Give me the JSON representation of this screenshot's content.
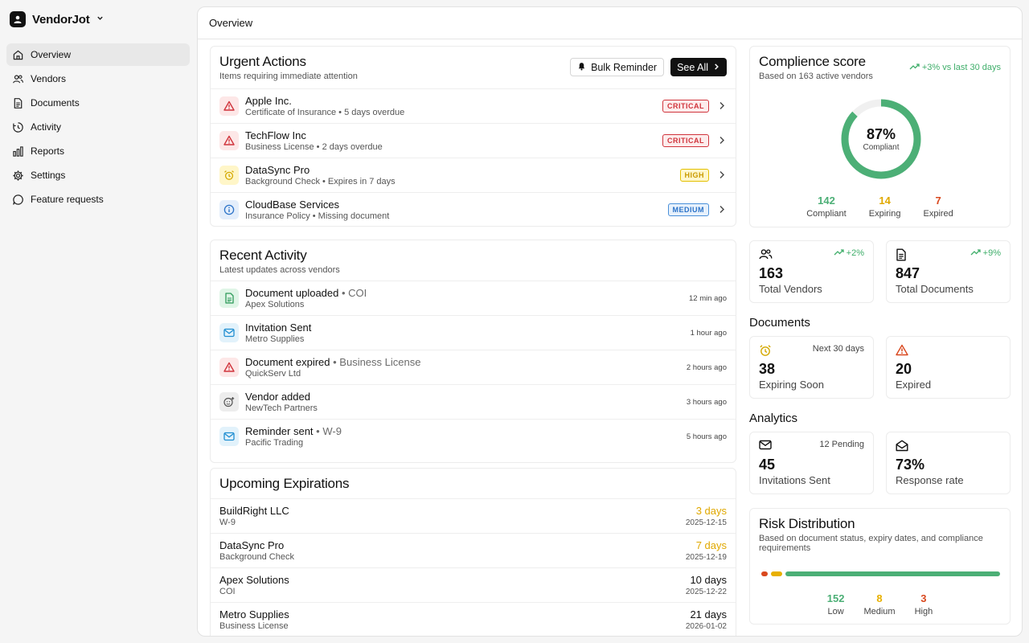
{
  "app": {
    "name": "VendorJot"
  },
  "sidebar": {
    "items": [
      {
        "label": "Overview",
        "icon": "home-icon",
        "active": true
      },
      {
        "label": "Vendors",
        "icon": "users-icon"
      },
      {
        "label": "Documents",
        "icon": "document-icon"
      },
      {
        "label": "Activity",
        "icon": "activity-icon"
      },
      {
        "label": "Reports",
        "icon": "bar-chart-icon"
      },
      {
        "label": "Settings",
        "icon": "gear-icon"
      },
      {
        "label": "Feature requests",
        "icon": "message-icon"
      }
    ]
  },
  "header": {
    "title": "Overview"
  },
  "urgent": {
    "title": "Urgent Actions",
    "subtitle": "Items requiring immediate attention",
    "bulk_label": "Bulk Reminder",
    "see_all_label": "See All",
    "items": [
      {
        "name": "Apple Inc.",
        "detail": "Certificate of Insurance • 5 days overdue",
        "badge": "CRITICAL",
        "level": "critical",
        "icon": "alert-triangle-icon"
      },
      {
        "name": "TechFlow Inc",
        "detail": "Business License • 2 days overdue",
        "badge": "CRITICAL",
        "level": "critical",
        "icon": "alert-triangle-icon"
      },
      {
        "name": "DataSync Pro",
        "detail": "Background Check • Expires in 7 days",
        "badge": "HIGH",
        "level": "high",
        "icon": "alarm-clock-icon"
      },
      {
        "name": "CloudBase Services",
        "detail": "Insurance Policy • Missing document",
        "badge": "MEDIUM",
        "level": "medium",
        "icon": "info-icon"
      }
    ]
  },
  "activity": {
    "title": "Recent Activity",
    "subtitle": "Latest updates across vendors",
    "items": [
      {
        "title": "Document uploaded",
        "extra": "• COI",
        "vendor": "Apex Solutions",
        "time": "12 min ago",
        "icon": "file-icon"
      },
      {
        "title": "Invitation Sent",
        "extra": "",
        "vendor": "Metro Supplies",
        "time": "1 hour ago",
        "icon": "mail-icon"
      },
      {
        "title": "Document expired",
        "extra": "• Business License",
        "vendor": "QuickServ Ltd",
        "time": "2 hours ago",
        "icon": "alert-triangle-icon"
      },
      {
        "title": "Vendor added",
        "extra": "",
        "vendor": "NewTech Partners",
        "time": "3 hours ago",
        "icon": "user-plus-icon"
      },
      {
        "title": "Reminder sent",
        "extra": "• W-9",
        "vendor": "Pacific Trading",
        "time": "5 hours ago",
        "icon": "mail-icon"
      }
    ]
  },
  "expirations": {
    "title": "Upcoming Expirations",
    "items": [
      {
        "vendor": "BuildRight LLC",
        "doc": "W-9",
        "days": "3 days",
        "date": "2025-12-15",
        "color": "#e0a800"
      },
      {
        "vendor": "DataSync Pro",
        "doc": "Background Check",
        "days": "7 days",
        "date": "2025-12-19",
        "color": "#e0a800"
      },
      {
        "vendor": "Apex Solutions",
        "doc": "COI",
        "days": "10 days",
        "date": "2025-12-22",
        "color": "#111111"
      },
      {
        "vendor": "Metro Supplies",
        "doc": "Business License",
        "days": "21 days",
        "date": "2026-01-02",
        "color": "#111111"
      }
    ]
  },
  "compliance": {
    "title": "Complience score",
    "subtitle": "Based on 163 active vendors",
    "trend": "+3% vs last 30 days",
    "percent_text": "87%",
    "percent": 87,
    "label": "Compliant",
    "stats": [
      {
        "num": "142",
        "label": "Compliant",
        "color": "#4caf76"
      },
      {
        "num": "14",
        "label": "Expiring",
        "color": "#e0a800"
      },
      {
        "num": "7",
        "label": "Expired",
        "color": "#d9481e"
      }
    ]
  },
  "totals": {
    "vendors": {
      "num": "163",
      "label": "Total Vendors",
      "trend": "+2%"
    },
    "documents": {
      "num": "847",
      "label": "Total Documents",
      "trend": "+9%"
    }
  },
  "documents_section": {
    "title": "Documents",
    "expiring": {
      "num": "38",
      "label": "Expiring Soon",
      "note": "Next 30 days"
    },
    "expired": {
      "num": "20",
      "label": "Expired"
    }
  },
  "analytics": {
    "title": "Analytics",
    "invitations": {
      "num": "45",
      "label": "Invitations Sent",
      "note": "12 Pending"
    },
    "response": {
      "num": "73%",
      "label": "Response rate"
    }
  },
  "risk": {
    "title": "Risk Distribution",
    "subtitle": "Based on document status, expiry dates, and compliance requirements",
    "segments": [
      {
        "name": "Low",
        "num": "152",
        "value": 152,
        "color": "#4caf76"
      },
      {
        "name": "Medium",
        "num": "8",
        "value": 8,
        "color": "#e8b000"
      },
      {
        "name": "High",
        "num": "3",
        "value": 3,
        "color": "#d9481e"
      }
    ]
  }
}
